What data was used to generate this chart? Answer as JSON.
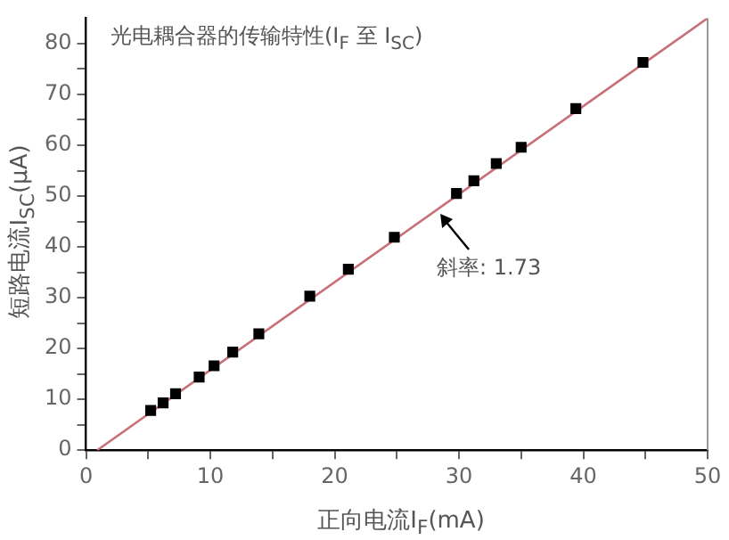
{
  "chart_data": {
    "type": "scatter",
    "title": "光电耦合器的传输特性(I$_{F}$ 至 I$_{SC}$)",
    "xlabel": "正向电流I$_{F}$(mA)",
    "ylabel": "短路电流I$_{SC}$(μA)",
    "annotations": [
      {
        "text": "斜率: 1.73",
        "x": 28.5,
        "y": 46.5
      }
    ],
    "xlim": [
      0,
      50
    ],
    "ylim": [
      0,
      85
    ],
    "xticks": [
      0,
      {
        "value": 5,
        "label": null
      },
      10,
      {
        "value": 15,
        "label": null
      },
      20,
      {
        "value": 25,
        "label": null
      },
      30,
      {
        "value": 35,
        "label": null
      },
      40,
      {
        "value": 45,
        "label": null
      },
      50
    ],
    "yticks": [
      0,
      {
        "value": 5,
        "label": null
      },
      10,
      {
        "value": 15,
        "label": null
      },
      20,
      {
        "value": 25,
        "label": null
      },
      30,
      {
        "value": 35,
        "label": null
      },
      40,
      {
        "value": 45,
        "label": null
      },
      50,
      {
        "value": 55,
        "label": null
      },
      60,
      {
        "value": 65,
        "label": null
      },
      70,
      {
        "value": 75,
        "label": null
      },
      80
    ],
    "marker": "square",
    "series": [
      {
        "type": "scatter",
        "color": "#000000",
        "x": [
          5.2,
          6.2,
          7.2,
          9.1,
          10.3,
          11.8,
          13.9,
          18.0,
          21.1,
          24.8,
          29.8,
          31.2,
          33.0,
          35.0,
          39.4,
          44.8
        ],
        "values": [
          7.8,
          9.3,
          11.1,
          14.4,
          16.6,
          19.3,
          22.9,
          30.3,
          35.6,
          41.9,
          50.5,
          53.0,
          56.4,
          59.6,
          67.2,
          76.3
        ]
      },
      {
        "type": "line",
        "color": "#c8707a",
        "x": [
          0.9,
          50
        ],
        "values": [
          0,
          85
        ],
        "marker": "none",
        "line_style": "solid"
      }
    ]
  }
}
